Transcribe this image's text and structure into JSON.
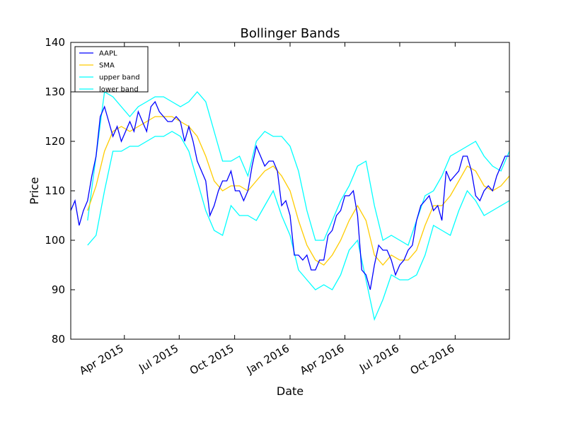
{
  "chart_data": {
    "type": "line",
    "title": "Bollinger Bands",
    "xlabel": "Date",
    "ylabel": "Price",
    "ylim": [
      80,
      140
    ],
    "xlim": [
      "2015-01-02",
      "2016-12-30"
    ],
    "yticks": [
      80,
      90,
      100,
      110,
      120,
      130,
      140
    ],
    "xticks": [
      {
        "label": "Apr 2015",
        "date": "2015-04-01"
      },
      {
        "label": "Jul 2015",
        "date": "2015-07-01"
      },
      {
        "label": "Oct 2015",
        "date": "2015-10-01"
      },
      {
        "label": "Jan 2016",
        "date": "2016-01-01"
      },
      {
        "label": "Apr 2016",
        "date": "2016-04-01"
      },
      {
        "label": "Jul 2016",
        "date": "2016-07-01"
      },
      {
        "label": "Oct 2016",
        "date": "2016-10-01"
      }
    ],
    "grid": false,
    "legend_position": "top-left",
    "series": [
      {
        "name": "AAPL",
        "color": "#0000ff",
        "points": [
          [
            "2015-01-02",
            106
          ],
          [
            "2015-01-09",
            108
          ],
          [
            "2015-01-16",
            103
          ],
          [
            "2015-01-23",
            106
          ],
          [
            "2015-01-30",
            108
          ],
          [
            "2015-02-06",
            113
          ],
          [
            "2015-02-13",
            117
          ],
          [
            "2015-02-20",
            125
          ],
          [
            "2015-02-27",
            127
          ],
          [
            "2015-03-06",
            124
          ],
          [
            "2015-03-13",
            121
          ],
          [
            "2015-03-20",
            123
          ],
          [
            "2015-03-27",
            120
          ],
          [
            "2015-04-03",
            122
          ],
          [
            "2015-04-10",
            124
          ],
          [
            "2015-04-17",
            122
          ],
          [
            "2015-04-24",
            126
          ],
          [
            "2015-05-01",
            124
          ],
          [
            "2015-05-08",
            122
          ],
          [
            "2015-05-15",
            127
          ],
          [
            "2015-05-22",
            128
          ],
          [
            "2015-05-29",
            126
          ],
          [
            "2015-06-05",
            125
          ],
          [
            "2015-06-12",
            124
          ],
          [
            "2015-06-19",
            124
          ],
          [
            "2015-06-26",
            125
          ],
          [
            "2015-07-03",
            124
          ],
          [
            "2015-07-10",
            120
          ],
          [
            "2015-07-17",
            123
          ],
          [
            "2015-07-24",
            120
          ],
          [
            "2015-07-31",
            116
          ],
          [
            "2015-08-07",
            114
          ],
          [
            "2015-08-14",
            112
          ],
          [
            "2015-08-21",
            105
          ],
          [
            "2015-08-28",
            107
          ],
          [
            "2015-09-04",
            110
          ],
          [
            "2015-09-11",
            112
          ],
          [
            "2015-09-18",
            112
          ],
          [
            "2015-09-25",
            114
          ],
          [
            "2015-10-02",
            110
          ],
          [
            "2015-10-09",
            110
          ],
          [
            "2015-10-16",
            108
          ],
          [
            "2015-10-23",
            110
          ],
          [
            "2015-10-30",
            115
          ],
          [
            "2015-11-06",
            119
          ],
          [
            "2015-11-13",
            117
          ],
          [
            "2015-11-20",
            115
          ],
          [
            "2015-11-27",
            116
          ],
          [
            "2015-12-04",
            116
          ],
          [
            "2015-12-11",
            114
          ],
          [
            "2015-12-18",
            107
          ],
          [
            "2015-12-25",
            108
          ],
          [
            "2016-01-01",
            105
          ],
          [
            "2016-01-08",
            97
          ],
          [
            "2016-01-15",
            97
          ],
          [
            "2016-01-22",
            96
          ],
          [
            "2016-01-29",
            97
          ],
          [
            "2016-02-05",
            94
          ],
          [
            "2016-02-12",
            94
          ],
          [
            "2016-02-19",
            96
          ],
          [
            "2016-02-26",
            96
          ],
          [
            "2016-03-04",
            101
          ],
          [
            "2016-03-11",
            102
          ],
          [
            "2016-03-18",
            105
          ],
          [
            "2016-03-25",
            106
          ],
          [
            "2016-04-01",
            109
          ],
          [
            "2016-04-08",
            109
          ],
          [
            "2016-04-15",
            110
          ],
          [
            "2016-04-22",
            105
          ],
          [
            "2016-04-29",
            94
          ],
          [
            "2016-05-06",
            93
          ],
          [
            "2016-05-13",
            90
          ],
          [
            "2016-05-20",
            95
          ],
          [
            "2016-05-27",
            99
          ],
          [
            "2016-06-03",
            98
          ],
          [
            "2016-06-10",
            98
          ],
          [
            "2016-06-17",
            96
          ],
          [
            "2016-06-24",
            93
          ],
          [
            "2016-07-01",
            95
          ],
          [
            "2016-07-08",
            96
          ],
          [
            "2016-07-15",
            98
          ],
          [
            "2016-07-22",
            99
          ],
          [
            "2016-07-29",
            104
          ],
          [
            "2016-08-05",
            107
          ],
          [
            "2016-08-12",
            108
          ],
          [
            "2016-08-19",
            109
          ],
          [
            "2016-08-26",
            106
          ],
          [
            "2016-09-02",
            107
          ],
          [
            "2016-09-09",
            104
          ],
          [
            "2016-09-16",
            114
          ],
          [
            "2016-09-23",
            112
          ],
          [
            "2016-09-30",
            113
          ],
          [
            "2016-10-07",
            114
          ],
          [
            "2016-10-14",
            117
          ],
          [
            "2016-10-21",
            117
          ],
          [
            "2016-10-28",
            114
          ],
          [
            "2016-11-04",
            109
          ],
          [
            "2016-11-11",
            108
          ],
          [
            "2016-11-18",
            110
          ],
          [
            "2016-11-25",
            111
          ],
          [
            "2016-12-02",
            110
          ],
          [
            "2016-12-09",
            113
          ],
          [
            "2016-12-16",
            115
          ],
          [
            "2016-12-23",
            117
          ],
          [
            "2016-12-30",
            117
          ]
        ]
      },
      {
        "name": "SMA",
        "color": "#ffcc00",
        "points": [
          [
            "2015-01-30",
            106
          ],
          [
            "2015-02-13",
            111
          ],
          [
            "2015-02-27",
            118
          ],
          [
            "2015-03-13",
            122
          ],
          [
            "2015-03-27",
            123
          ],
          [
            "2015-04-10",
            122
          ],
          [
            "2015-04-24",
            123
          ],
          [
            "2015-05-08",
            124
          ],
          [
            "2015-05-22",
            125
          ],
          [
            "2015-06-05",
            125
          ],
          [
            "2015-06-19",
            125
          ],
          [
            "2015-07-03",
            124
          ],
          [
            "2015-07-17",
            123
          ],
          [
            "2015-07-31",
            121
          ],
          [
            "2015-08-14",
            117
          ],
          [
            "2015-08-28",
            112
          ],
          [
            "2015-09-11",
            110
          ],
          [
            "2015-09-25",
            111
          ],
          [
            "2015-10-09",
            111
          ],
          [
            "2015-10-23",
            110
          ],
          [
            "2015-11-06",
            112
          ],
          [
            "2015-11-20",
            114
          ],
          [
            "2015-12-04",
            115
          ],
          [
            "2015-12-18",
            113
          ],
          [
            "2016-01-01",
            110
          ],
          [
            "2016-01-15",
            104
          ],
          [
            "2016-01-29",
            99
          ],
          [
            "2016-02-12",
            96
          ],
          [
            "2016-02-26",
            95
          ],
          [
            "2016-03-11",
            97
          ],
          [
            "2016-03-25",
            100
          ],
          [
            "2016-04-08",
            104
          ],
          [
            "2016-04-22",
            107
          ],
          [
            "2016-05-06",
            104
          ],
          [
            "2016-05-20",
            97
          ],
          [
            "2016-06-03",
            95
          ],
          [
            "2016-06-17",
            97
          ],
          [
            "2016-07-01",
            96
          ],
          [
            "2016-07-15",
            96
          ],
          [
            "2016-07-29",
            98
          ],
          [
            "2016-08-12",
            103
          ],
          [
            "2016-08-26",
            107
          ],
          [
            "2016-09-09",
            107
          ],
          [
            "2016-09-23",
            109
          ],
          [
            "2016-10-07",
            112
          ],
          [
            "2016-10-21",
            115
          ],
          [
            "2016-11-04",
            114
          ],
          [
            "2016-11-18",
            111
          ],
          [
            "2016-12-02",
            110
          ],
          [
            "2016-12-16",
            111
          ],
          [
            "2016-12-30",
            113
          ]
        ]
      },
      {
        "name": "upper band",
        "color": "#00ffff",
        "points": [
          [
            "2015-01-30",
            104
          ],
          [
            "2015-02-13",
            117
          ],
          [
            "2015-02-27",
            130
          ],
          [
            "2015-03-13",
            129
          ],
          [
            "2015-03-27",
            127
          ],
          [
            "2015-04-10",
            125
          ],
          [
            "2015-04-24",
            127
          ],
          [
            "2015-05-08",
            128
          ],
          [
            "2015-05-22",
            129
          ],
          [
            "2015-06-05",
            129
          ],
          [
            "2015-06-19",
            128
          ],
          [
            "2015-07-03",
            127
          ],
          [
            "2015-07-17",
            128
          ],
          [
            "2015-07-31",
            130
          ],
          [
            "2015-08-14",
            128
          ],
          [
            "2015-08-28",
            122
          ],
          [
            "2015-09-11",
            116
          ],
          [
            "2015-09-25",
            116
          ],
          [
            "2015-10-09",
            117
          ],
          [
            "2015-10-23",
            113
          ],
          [
            "2015-11-06",
            120
          ],
          [
            "2015-11-20",
            122
          ],
          [
            "2015-12-04",
            121
          ],
          [
            "2015-12-18",
            121
          ],
          [
            "2016-01-01",
            119
          ],
          [
            "2016-01-15",
            114
          ],
          [
            "2016-01-29",
            106
          ],
          [
            "2016-02-12",
            100
          ],
          [
            "2016-02-26",
            100
          ],
          [
            "2016-03-11",
            104
          ],
          [
            "2016-03-25",
            108
          ],
          [
            "2016-04-08",
            111
          ],
          [
            "2016-04-22",
            115
          ],
          [
            "2016-05-06",
            116
          ],
          [
            "2016-05-20",
            107
          ],
          [
            "2016-06-03",
            100
          ],
          [
            "2016-06-17",
            101
          ],
          [
            "2016-07-01",
            100
          ],
          [
            "2016-07-15",
            99
          ],
          [
            "2016-07-29",
            104
          ],
          [
            "2016-08-12",
            109
          ],
          [
            "2016-08-26",
            110
          ],
          [
            "2016-09-09",
            113
          ],
          [
            "2016-09-23",
            117
          ],
          [
            "2016-10-07",
            118
          ],
          [
            "2016-10-21",
            119
          ],
          [
            "2016-11-04",
            120
          ],
          [
            "2016-11-18",
            117
          ],
          [
            "2016-12-02",
            115
          ],
          [
            "2016-12-16",
            114
          ],
          [
            "2016-12-30",
            118
          ]
        ]
      },
      {
        "name": "lower band",
        "color": "#00ffff",
        "points": [
          [
            "2015-01-30",
            99
          ],
          [
            "2015-02-13",
            101
          ],
          [
            "2015-02-27",
            110
          ],
          [
            "2015-03-13",
            118
          ],
          [
            "2015-03-27",
            118
          ],
          [
            "2015-04-10",
            119
          ],
          [
            "2015-04-24",
            119
          ],
          [
            "2015-05-08",
            120
          ],
          [
            "2015-05-22",
            121
          ],
          [
            "2015-06-05",
            121
          ],
          [
            "2015-06-19",
            122
          ],
          [
            "2015-07-03",
            121
          ],
          [
            "2015-07-17",
            118
          ],
          [
            "2015-07-31",
            112
          ],
          [
            "2015-08-14",
            106
          ],
          [
            "2015-08-28",
            102
          ],
          [
            "2015-09-11",
            101
          ],
          [
            "2015-09-25",
            107
          ],
          [
            "2015-10-09",
            105
          ],
          [
            "2015-10-23",
            105
          ],
          [
            "2015-11-06",
            104
          ],
          [
            "2015-11-20",
            107
          ],
          [
            "2015-12-04",
            110
          ],
          [
            "2015-12-18",
            105
          ],
          [
            "2016-01-01",
            101
          ],
          [
            "2016-01-15",
            94
          ],
          [
            "2016-01-29",
            92
          ],
          [
            "2016-02-12",
            90
          ],
          [
            "2016-02-26",
            91
          ],
          [
            "2016-03-11",
            90
          ],
          [
            "2016-03-25",
            93
          ],
          [
            "2016-04-08",
            98
          ],
          [
            "2016-04-22",
            100
          ],
          [
            "2016-05-06",
            92
          ],
          [
            "2016-05-20",
            84
          ],
          [
            "2016-06-03",
            88
          ],
          [
            "2016-06-17",
            93
          ],
          [
            "2016-07-01",
            92
          ],
          [
            "2016-07-15",
            92
          ],
          [
            "2016-07-29",
            93
          ],
          [
            "2016-08-12",
            97
          ],
          [
            "2016-08-26",
            103
          ],
          [
            "2016-09-09",
            102
          ],
          [
            "2016-09-23",
            101
          ],
          [
            "2016-10-07",
            106
          ],
          [
            "2016-10-21",
            110
          ],
          [
            "2016-11-04",
            108
          ],
          [
            "2016-11-18",
            105
          ],
          [
            "2016-12-02",
            106
          ],
          [
            "2016-12-16",
            107
          ],
          [
            "2016-12-30",
            108
          ]
        ]
      }
    ]
  }
}
